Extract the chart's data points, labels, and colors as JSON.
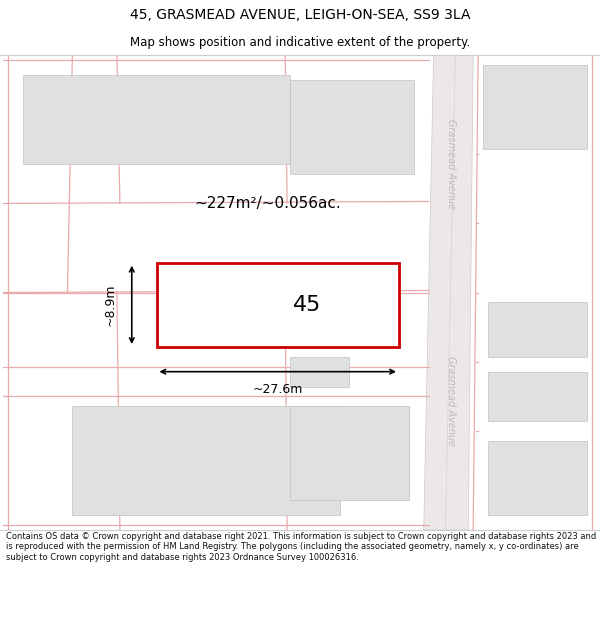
{
  "title": "45, GRASMEAD AVENUE, LEIGH-ON-SEA, SS9 3LA",
  "subtitle": "Map shows position and indicative extent of the property.",
  "footer": "Contains OS data © Crown copyright and database right 2021. This information is subject to Crown copyright and database rights 2023 and is reproduced with the permission of HM Land Registry. The polygons (including the associated geometry, namely x, y co-ordinates) are subject to Crown copyright and database rights 2023 Ordnance Survey 100026316.",
  "highlight_color": "#cc0000",
  "property_label": "45",
  "area_label": "~227m²/~0.056ac.",
  "width_label": "~27.6m",
  "height_label": "~8.9m",
  "parcel_line_color": "#e8aaaa",
  "building_fill": "#e0e0e0",
  "building_stroke": "#c0c0c0",
  "road_fill": "#e8e4e4",
  "road_label_color": "#bbbbbb"
}
